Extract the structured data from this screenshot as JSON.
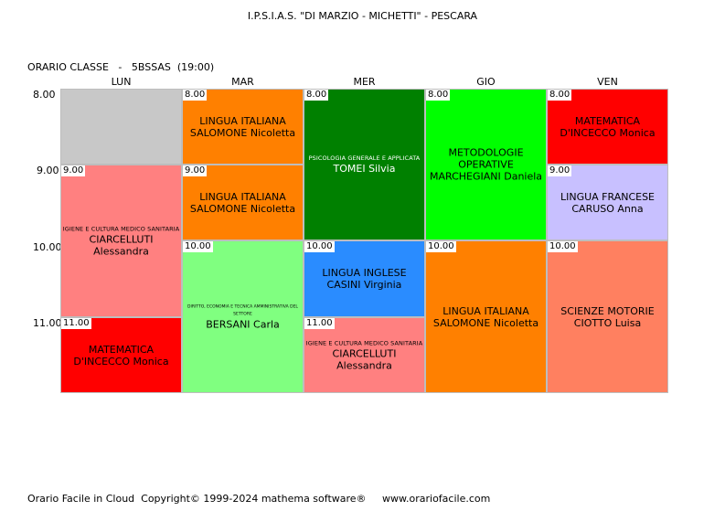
{
  "school_title": "I.P.S.I.A.S. \"DI MARZIO - MICHETTI\" - PESCARA",
  "class_label": "ORARIO CLASSE   -   5BSSAS  (19:00)",
  "days": [
    "LUN",
    "MAR",
    "MER",
    "GIO",
    "VEN"
  ],
  "hours": [
    "8.00",
    "9.00",
    "10.00",
    "11.00"
  ],
  "colors": {
    "white": "#ffffff",
    "orange": "#ff8000",
    "dark_green": "#008000",
    "lime": "#00ff00",
    "red": "#ff0000",
    "salmon": "#ff8080",
    "lavender": "#c8c0ff",
    "light_green": "#80ff80",
    "blue": "#2a8cff",
    "coral": "#ff8060"
  },
  "lessons": {
    "lun_1": {
      "time": "",
      "subject": "",
      "teacher": ""
    },
    "lun_2": {
      "time": "9.00",
      "subject": "IGIENE E CULTURA MEDICO SANITARIA",
      "teacher": "CIARCELLUTI Alessandra"
    },
    "lun_4": {
      "time": "11.00",
      "subject": "MATEMATICA",
      "teacher": "D'INCECCO Monica"
    },
    "mar_1": {
      "time": "8.00",
      "subject": "LINGUA ITALIANA",
      "teacher": "SALOMONE Nicoletta"
    },
    "mar_2": {
      "time": "9.00",
      "subject": "LINGUA ITALIANA",
      "teacher": "SALOMONE Nicoletta"
    },
    "mar_3": {
      "time": "10.00",
      "subject": "DIRITTO, ECONOMIA E TECNICA AMMINISTRATIVA DEL SETTORE",
      "teacher": "BERSANI Carla"
    },
    "mer_1": {
      "time": "8.00",
      "subject": "PSICOLOGIA GENERALE E APPLICATA",
      "teacher": "TOMEI Silvia"
    },
    "mer_3": {
      "time": "10.00",
      "subject": "LINGUA INGLESE",
      "teacher": "CASINI Virginia"
    },
    "mer_4": {
      "time": "11.00",
      "subject": "IGIENE E CULTURA MEDICO SANITARIA",
      "teacher": "CIARCELLUTI Alessandra"
    },
    "gio_1": {
      "time": "8.00",
      "subject": "METODOLOGIE OPERATIVE",
      "teacher": "MARCHEGIANI Daniela"
    },
    "gio_3": {
      "time": "10.00",
      "subject": "LINGUA ITALIANA",
      "teacher": "SALOMONE Nicoletta"
    },
    "ven_1": {
      "time": "8.00",
      "subject": "MATEMATICA",
      "teacher": "D'INCECCO Monica"
    },
    "ven_2": {
      "time": "9.00",
      "subject": "LINGUA FRANCESE",
      "teacher": "CARUSO Anna"
    },
    "ven_3": {
      "time": "10.00",
      "subject": "SCIENZE MOTORIE",
      "teacher": "CIOTTO Luisa"
    }
  },
  "footer": "Orario Facile in Cloud  Copyright© 1999-2024 mathema software®     www.orariofacile.com"
}
